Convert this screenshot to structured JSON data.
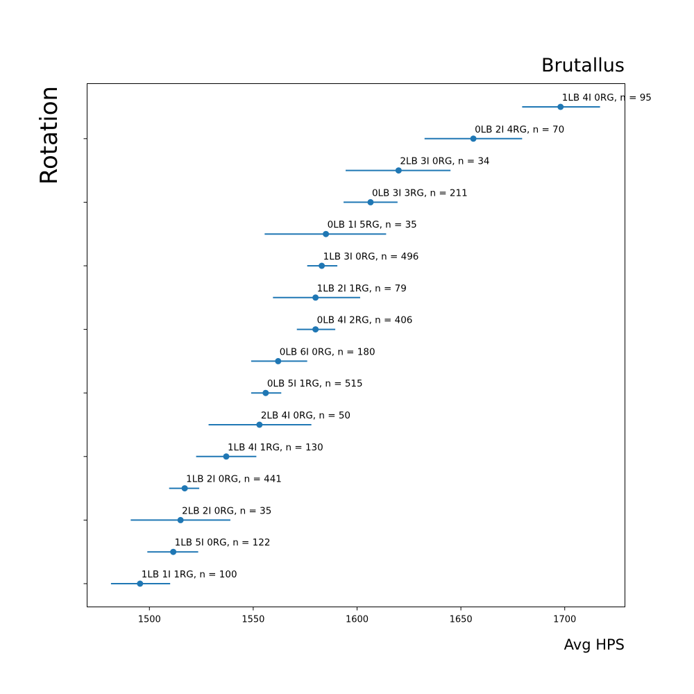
{
  "chart_data": {
    "type": "scatter",
    "title": "Brutallus",
    "xlabel": "Avg HPS",
    "ylabel": "Rotation",
    "xlim": [
      1470,
      1729
    ],
    "xticks": [
      1500,
      1550,
      1600,
      1650,
      1700
    ],
    "grid": false,
    "color": "#1f77b4",
    "points": [
      {
        "label": "1LB 1I 1RG, n = 100",
        "x": 1495.5,
        "err_low": 1481.5,
        "err_high": 1510
      },
      {
        "label": "1LB 5I 0RG, n = 122",
        "x": 1511.5,
        "err_low": 1499,
        "err_high": 1523.5
      },
      {
        "label": "2LB 2I 0RG, n = 35",
        "x": 1515,
        "err_low": 1491,
        "err_high": 1539
      },
      {
        "label": "1LB 2I 0RG, n = 441",
        "x": 1517,
        "err_low": 1509.5,
        "err_high": 1524
      },
      {
        "label": "1LB 4I 1RG, n = 130",
        "x": 1537,
        "err_low": 1522.5,
        "err_high": 1551.5
      },
      {
        "label": "2LB 4I 0RG, n = 50",
        "x": 1553,
        "err_low": 1528.5,
        "err_high": 1578
      },
      {
        "label": "0LB 5I 1RG, n = 515",
        "x": 1556,
        "err_low": 1549,
        "err_high": 1563.5
      },
      {
        "label": "0LB 6I 0RG, n = 180",
        "x": 1562,
        "err_low": 1549,
        "err_high": 1576
      },
      {
        "label": "0LB 4I 2RG, n = 406",
        "x": 1580,
        "err_low": 1571,
        "err_high": 1589.5
      },
      {
        "label": "1LB 2I 1RG, n = 79",
        "x": 1580,
        "err_low": 1559.5,
        "err_high": 1601.5
      },
      {
        "label": "1LB 3I 0RG, n = 496",
        "x": 1583,
        "err_low": 1576,
        "err_high": 1590.5
      },
      {
        "label": "0LB 1I 5RG, n = 35",
        "x": 1585,
        "err_low": 1555.5,
        "err_high": 1614
      },
      {
        "label": "0LB 3I 3RG, n = 211",
        "x": 1606.5,
        "err_low": 1593.5,
        "err_high": 1619.5
      },
      {
        "label": "2LB 3I 0RG, n = 34",
        "x": 1620,
        "err_low": 1594.5,
        "err_high": 1645
      },
      {
        "label": "0LB 2I 4RG, n = 70",
        "x": 1656,
        "err_low": 1632.5,
        "err_high": 1679.5
      },
      {
        "label": "1LB 4I 0RG, n = 95",
        "x": 1698,
        "err_low": 1679.5,
        "err_high": 1717
      }
    ]
  }
}
